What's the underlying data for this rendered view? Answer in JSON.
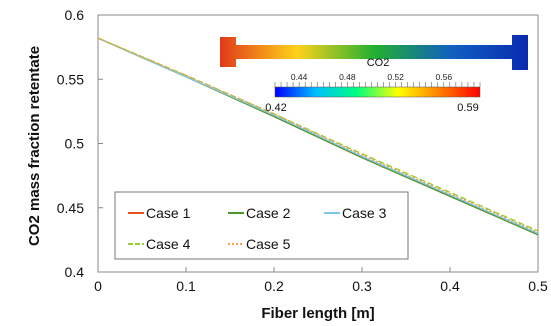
{
  "chart_data": {
    "type": "line",
    "xlabel": "Fiber length [m]",
    "ylabel": "CO2 mass fraction retentate",
    "xlim": [
      0,
      0.5
    ],
    "ylim": [
      0.4,
      0.6
    ],
    "x_ticks": [
      "0",
      "0.1",
      "0.2",
      "0.3",
      "0.4",
      "0.5"
    ],
    "y_ticks": [
      "0.4",
      "0.45",
      "0.5",
      "0.55",
      "0.6"
    ],
    "grid": false,
    "legend_position": "bottom-left",
    "series": [
      {
        "name": "Case 1",
        "color": "#e8531f",
        "dash": "solid",
        "x": [
          0,
          0.1,
          0.2,
          0.3,
          0.4,
          0.5
        ],
        "y": [
          0.582,
          0.552,
          0.521,
          0.489,
          0.459,
          0.429
        ]
      },
      {
        "name": "Case 2",
        "color": "#4a9a2a",
        "dash": "solid",
        "x": [
          0,
          0.1,
          0.2,
          0.3,
          0.4,
          0.5
        ],
        "y": [
          0.582,
          0.552,
          0.521,
          0.489,
          0.459,
          0.429
        ]
      },
      {
        "name": "Case 3",
        "color": "#7ec8ee",
        "dash": "solid",
        "x": [
          0,
          0.1,
          0.2,
          0.3,
          0.4,
          0.5
        ],
        "y": [
          0.582,
          0.552,
          0.522,
          0.49,
          0.46,
          0.43
        ]
      },
      {
        "name": "Case 4",
        "color": "#9acd32",
        "dash": "dashed",
        "x": [
          0,
          0.1,
          0.2,
          0.3,
          0.4,
          0.5
        ],
        "y": [
          0.582,
          0.553,
          0.523,
          0.492,
          0.462,
          0.432
        ]
      },
      {
        "name": "Case 5",
        "color": "#f0a050",
        "dash": "dotted",
        "x": [
          0,
          0.1,
          0.2,
          0.3,
          0.4,
          0.5
        ],
        "y": [
          0.582,
          0.553,
          0.523,
          0.491,
          0.461,
          0.431
        ]
      }
    ],
    "colorbar": {
      "title": "CO2",
      "min_label": "0.42",
      "max_label": "0.59",
      "tick_labels": [
        "0.44",
        "0.48",
        "0.52",
        "0.56"
      ],
      "tick_values": [
        0.44,
        0.48,
        0.52,
        0.56
      ],
      "min": 0.42,
      "max": 0.59,
      "colors": [
        "#0000ff",
        "#00bfff",
        "#00ff80",
        "#ffff00",
        "#ff8000",
        "#ff0000"
      ]
    },
    "arrow_colors": [
      "#e03a1a",
      "#ffd21a",
      "#22b030",
      "#1060c0",
      "#0a2ab0"
    ]
  }
}
